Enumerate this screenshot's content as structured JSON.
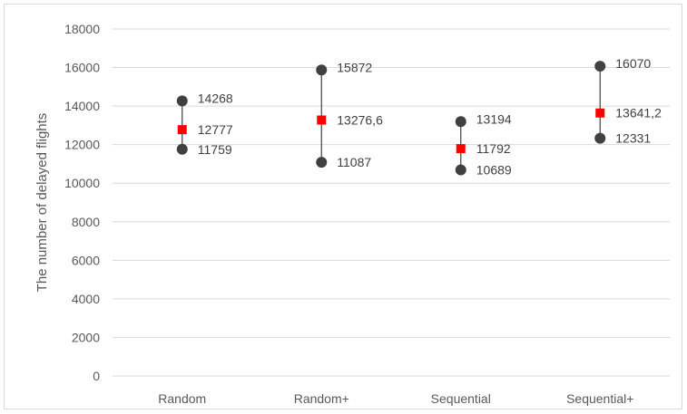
{
  "chart_data": {
    "type": "scatter",
    "title": "",
    "xlabel": "",
    "ylabel": "The number of delayed flights",
    "ylim": [
      0,
      18000
    ],
    "y_ticks": [
      0,
      2000,
      4000,
      6000,
      8000,
      10000,
      12000,
      14000,
      16000,
      18000
    ],
    "grid": true,
    "legend": "none",
    "categories": [
      "Random",
      "Random+",
      "Sequential",
      "Sequential+"
    ],
    "series": [
      {
        "values": [
          14268,
          15872,
          13194,
          16070
        ],
        "labels": [
          "14268",
          "15872",
          "13194",
          "16070"
        ],
        "marker": "circle",
        "color": "#404040"
      },
      {
        "values": [
          12777,
          13276.6,
          11792,
          13641.2
        ],
        "labels": [
          "12777",
          "13276,6",
          "11792",
          "13641,2"
        ],
        "marker": "square",
        "color": "#ff0000"
      },
      {
        "values": [
          11759,
          11087,
          10689,
          12331
        ],
        "labels": [
          "11759",
          "11087",
          "10689",
          "12331"
        ],
        "marker": "circle",
        "color": "#404040"
      }
    ]
  }
}
